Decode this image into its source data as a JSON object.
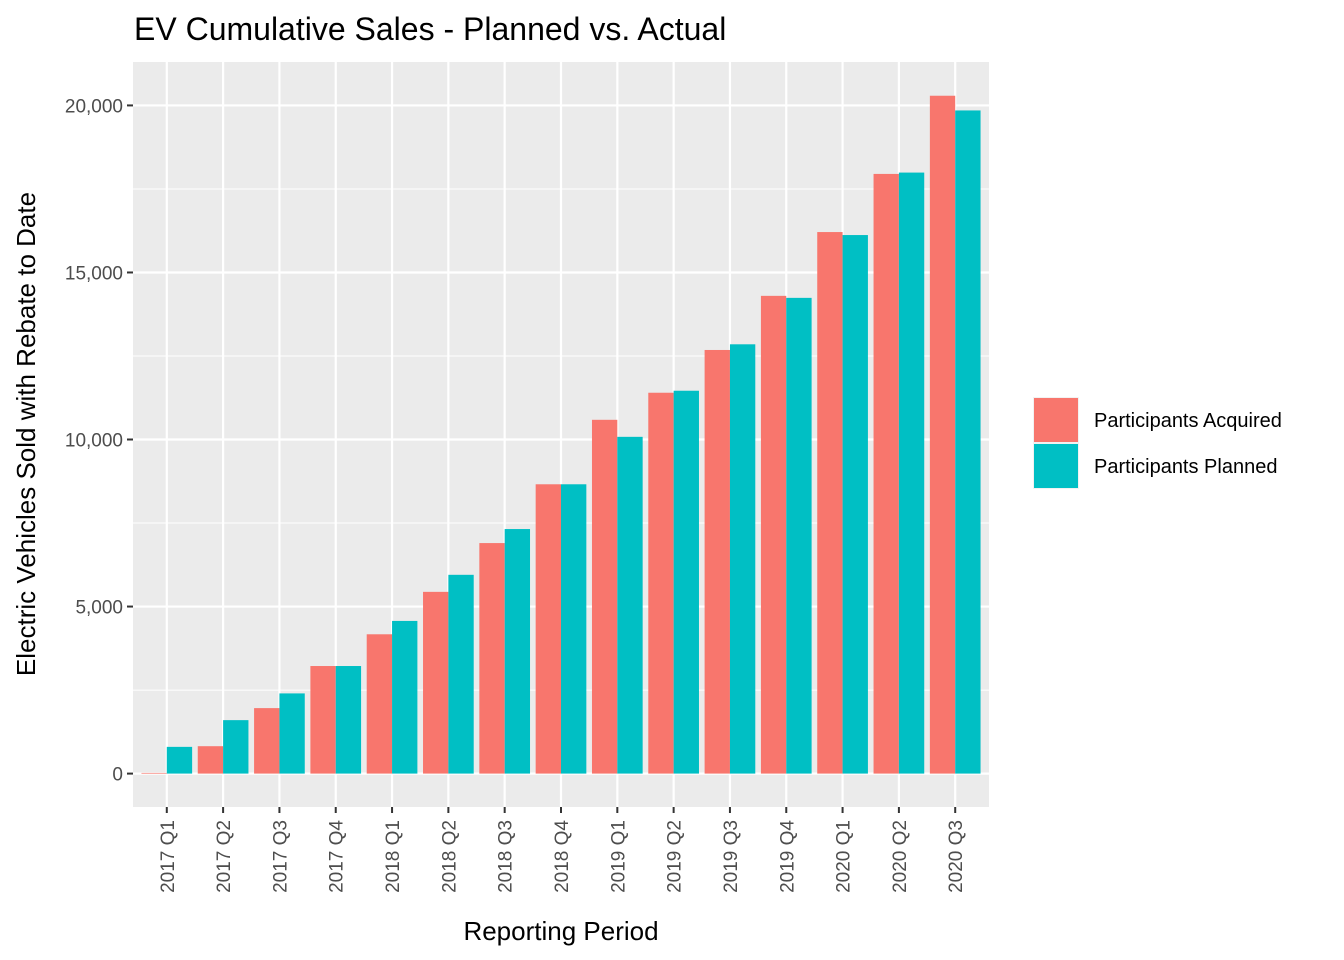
{
  "chart_data": {
    "type": "bar",
    "title": "EV Cumulative Sales - Planned vs. Actual",
    "xlabel": "Reporting Period",
    "ylabel": "Electric Vehicles Sold with Rebate to Date",
    "categories": [
      "2017 Q1",
      "2017 Q2",
      "2017 Q3",
      "2017 Q4",
      "2018 Q1",
      "2018 Q2",
      "2018 Q3",
      "2018 Q4",
      "2019 Q1",
      "2019 Q2",
      "2019 Q3",
      "2019 Q4",
      "2020 Q1",
      "2020 Q2",
      "2020 Q3"
    ],
    "series": [
      {
        "name": "Participants Acquired",
        "color": "#F8766D",
        "values": [
          20,
          820,
          1960,
          3220,
          4170,
          5440,
          6900,
          8660,
          10590,
          11400,
          12680,
          14300,
          16210,
          17950,
          20290
        ]
      },
      {
        "name": "Participants Planned",
        "color": "#00BFC4",
        "values": [
          800,
          1600,
          2400,
          3220,
          4570,
          5950,
          7320,
          8660,
          10080,
          11460,
          12850,
          14240,
          16120,
          17990,
          19850
        ]
      }
    ],
    "ylim": [
      -1000,
      21300
    ],
    "yticks": [
      0,
      5000,
      10000,
      15000,
      20000
    ],
    "ytick_labels": [
      "0",
      "5,000",
      "10,000",
      "15,000",
      "20,000"
    ],
    "grid": true,
    "legend_position": "right"
  }
}
